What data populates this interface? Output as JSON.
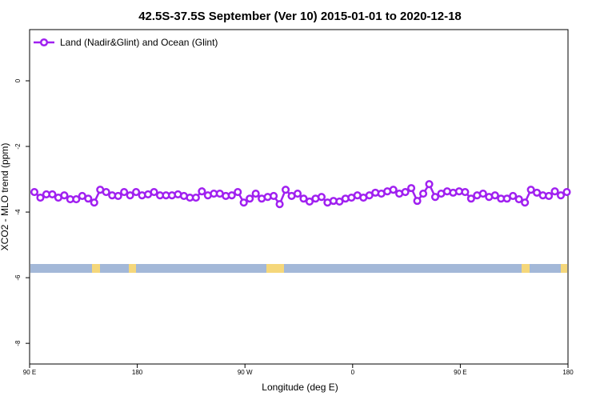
{
  "chart_data": {
    "type": "line",
    "title": "42.5S-37.5S September (Ver 10)   2015-01-01 to 2020-12-18",
    "xlabel": "Longitude (deg E)",
    "ylabel": "XCO2 - MLO trend (ppm)",
    "x": [
      94,
      99,
      104,
      109,
      114,
      119,
      124,
      129,
      134,
      139,
      144,
      149,
      154,
      159,
      164,
      169,
      174,
      179,
      184,
      189,
      194,
      199,
      204,
      209,
      214,
      219,
      224,
      229,
      234,
      239,
      244,
      249,
      254,
      259,
      264,
      269,
      274,
      279,
      284,
      289,
      294,
      299,
      304,
      309,
      314,
      319,
      324,
      329,
      334,
      339,
      344,
      349,
      354,
      359,
      364,
      369,
      374,
      379,
      384,
      389,
      394,
      399,
      404,
      409,
      414,
      419,
      424,
      429,
      434,
      439,
      444,
      449,
      454,
      459,
      464,
      469,
      474,
      479,
      484,
      489,
      494,
      499,
      504,
      509,
      514,
      519,
      524,
      529,
      534,
      539
    ],
    "series": [
      {
        "name": "Land (Nadir&Glint) and Ocean (Glint)",
        "color": "#a020f0",
        "values": [
          -3.39,
          -3.56,
          -3.46,
          -3.46,
          -3.56,
          -3.49,
          -3.61,
          -3.61,
          -3.51,
          -3.59,
          -3.71,
          -3.32,
          -3.39,
          -3.49,
          -3.51,
          -3.39,
          -3.49,
          -3.39,
          -3.49,
          -3.46,
          -3.39,
          -3.49,
          -3.49,
          -3.49,
          -3.46,
          -3.51,
          -3.56,
          -3.56,
          -3.37,
          -3.49,
          -3.44,
          -3.44,
          -3.51,
          -3.49,
          -3.39,
          -3.71,
          -3.59,
          -3.44,
          -3.59,
          -3.54,
          -3.51,
          -3.76,
          -3.32,
          -3.51,
          -3.44,
          -3.59,
          -3.68,
          -3.59,
          -3.54,
          -3.71,
          -3.66,
          -3.68,
          -3.59,
          -3.56,
          -3.49,
          -3.56,
          -3.49,
          -3.41,
          -3.44,
          -3.37,
          -3.32,
          -3.44,
          -3.39,
          -3.27,
          -3.66,
          -3.44,
          -3.15,
          -3.54,
          -3.44,
          -3.37,
          -3.41,
          -3.37,
          -3.39,
          -3.59,
          -3.49,
          -3.44,
          -3.54,
          -3.49,
          -3.59,
          -3.59,
          -3.51,
          -3.61,
          -3.71,
          -3.32,
          -3.41,
          -3.49,
          -3.51,
          -3.37,
          -3.49,
          -3.39
        ]
      }
    ],
    "xlim": [
      90,
      540
    ],
    "xticks": [
      {
        "value": 90,
        "label": "90 E"
      },
      180,
      {
        "value": 270,
        "label": "90 W"
      },
      {
        "value": 360,
        "label": "0"
      },
      {
        "value": 450,
        "label": "90 E"
      },
      {
        "value": 540,
        "label": "180"
      }
    ],
    "ylim": [
      -8.63,
      1.56
    ],
    "yticks": [
      0,
      -2,
      -4,
      -6,
      -8
    ],
    "legend": "top-left"
  }
}
